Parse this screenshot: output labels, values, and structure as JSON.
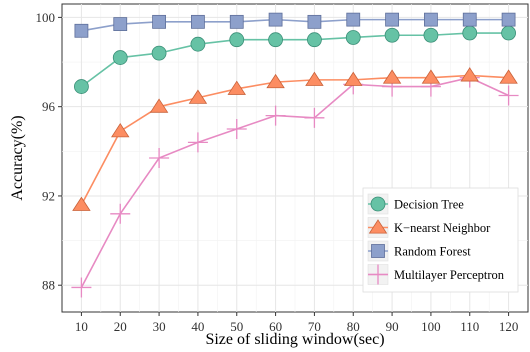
{
  "chart_data": {
    "type": "line",
    "xlabel": "Size of sliding window(sec)",
    "ylabel": "Accuracy(%)",
    "x": [
      10,
      20,
      30,
      40,
      50,
      60,
      70,
      80,
      90,
      100,
      110,
      120
    ],
    "xlim": [
      5,
      125
    ],
    "ylim": [
      86.8,
      100.6
    ],
    "yticks": [
      88,
      92,
      96,
      100
    ],
    "grid": true,
    "legend_position": "bottom-right",
    "series": [
      {
        "name": "Decision Tree",
        "marker": "circle",
        "color": "#66c2a5",
        "values": [
          96.9,
          98.2,
          98.4,
          98.8,
          99.0,
          99.0,
          99.0,
          99.1,
          99.2,
          99.2,
          99.3,
          99.3
        ]
      },
      {
        "name": "K−nearst Neighbor",
        "marker": "triangle",
        "color": "#fc8d62",
        "values": [
          91.6,
          94.9,
          96.0,
          96.4,
          96.8,
          97.1,
          97.2,
          97.2,
          97.3,
          97.3,
          97.4,
          97.3
        ]
      },
      {
        "name": "Random Forest",
        "marker": "square",
        "color": "#8da0cb",
        "values": [
          99.4,
          99.7,
          99.8,
          99.8,
          99.8,
          99.9,
          99.8,
          99.9,
          99.9,
          99.9,
          99.9,
          99.9
        ]
      },
      {
        "name": "Multilayer Perceptron",
        "marker": "plus",
        "color": "#e78ac3",
        "values": [
          87.9,
          91.2,
          93.7,
          94.4,
          95.0,
          95.6,
          95.5,
          97.0,
          96.9,
          96.9,
          97.3,
          96.5
        ]
      }
    ]
  }
}
